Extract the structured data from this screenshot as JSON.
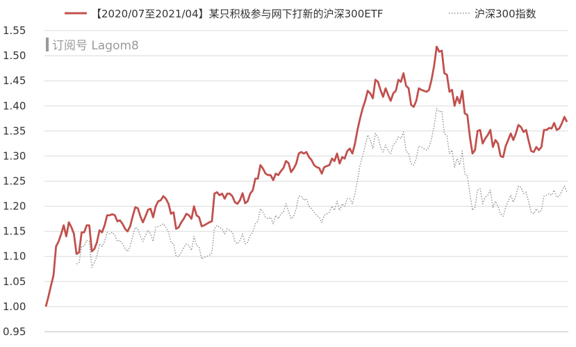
{
  "chart_data": {
    "type": "line",
    "title": "",
    "xlabel": "",
    "ylabel": "",
    "ylim": [
      0.95,
      1.55
    ],
    "yticks": [
      "0.95",
      "1.00",
      "1.05",
      "1.10",
      "1.15",
      "1.20",
      "1.25",
      "1.30",
      "1.35",
      "1.40",
      "1.45",
      "1.50",
      "1.55"
    ],
    "grid": "horizontal",
    "legend_position": "top",
    "watermark": "订阅号 Lagom8",
    "series": [
      {
        "name": "【2020/07至2021/04】某只积极参与网下打新的沪深300ETF",
        "color": "#c0504d",
        "style": "solid",
        "values": [
          1.0,
          1.02,
          1.042,
          1.062,
          1.12,
          1.13,
          1.145,
          1.162,
          1.14,
          1.168,
          1.158,
          1.145,
          1.105,
          1.108,
          1.148,
          1.148,
          1.162,
          1.162,
          1.11,
          1.115,
          1.128,
          1.152,
          1.148,
          1.162,
          1.182,
          1.182,
          1.184,
          1.182,
          1.17,
          1.172,
          1.165,
          1.155,
          1.15,
          1.16,
          1.18,
          1.198,
          1.196,
          1.18,
          1.168,
          1.18,
          1.193,
          1.195,
          1.178,
          1.2,
          1.21,
          1.212,
          1.22,
          1.215,
          1.205,
          1.185,
          1.188,
          1.155,
          1.158,
          1.168,
          1.175,
          1.185,
          1.182,
          1.175,
          1.2,
          1.182,
          1.178,
          1.16,
          1.162,
          1.165,
          1.168,
          1.17,
          1.225,
          1.228,
          1.222,
          1.225,
          1.215,
          1.225,
          1.225,
          1.22,
          1.208,
          1.205,
          1.212,
          1.226,
          1.206,
          1.21,
          1.225,
          1.232,
          1.255,
          1.255,
          1.282,
          1.275,
          1.265,
          1.262,
          1.262,
          1.252,
          1.265,
          1.262,
          1.27,
          1.276,
          1.29,
          1.286,
          1.268,
          1.275,
          1.285,
          1.305,
          1.308,
          1.305,
          1.308,
          1.298,
          1.292,
          1.282,
          1.278,
          1.276,
          1.265,
          1.278,
          1.28,
          1.282,
          1.295,
          1.29,
          1.305,
          1.285,
          1.298,
          1.295,
          1.31,
          1.315,
          1.305,
          1.325,
          1.352,
          1.375,
          1.395,
          1.41,
          1.43,
          1.425,
          1.415,
          1.452,
          1.448,
          1.432,
          1.418,
          1.435,
          1.422,
          1.41,
          1.425,
          1.43,
          1.452,
          1.448,
          1.465,
          1.44,
          1.435,
          1.402,
          1.398,
          1.41,
          1.435,
          1.432,
          1.43,
          1.428,
          1.432,
          1.452,
          1.48,
          1.518,
          1.508,
          1.51,
          1.465,
          1.462,
          1.428,
          1.432,
          1.4,
          1.418,
          1.405,
          1.43,
          1.385,
          1.382,
          1.338,
          1.305,
          1.312,
          1.35,
          1.352,
          1.325,
          1.335,
          1.342,
          1.352,
          1.318,
          1.332,
          1.325,
          1.3,
          1.298,
          1.32,
          1.332,
          1.345,
          1.332,
          1.345,
          1.362,
          1.358,
          1.348,
          1.352,
          1.33,
          1.31,
          1.308,
          1.318,
          1.312,
          1.318,
          1.352,
          1.352,
          1.356,
          1.355,
          1.366,
          1.352,
          1.355,
          1.365,
          1.378,
          1.368
        ]
      },
      {
        "name": "沪深300指数",
        "color": "#8c8c8c",
        "style": "dotted",
        "values": [
          null,
          null,
          null,
          null,
          null,
          null,
          null,
          null,
          null,
          null,
          null,
          null,
          1.085,
          1.088,
          1.12,
          1.12,
          1.132,
          1.13,
          1.078,
          1.088,
          1.1,
          1.125,
          1.12,
          1.13,
          1.148,
          1.145,
          1.148,
          1.142,
          1.13,
          1.132,
          1.125,
          1.115,
          1.11,
          1.12,
          1.14,
          1.158,
          1.155,
          1.14,
          1.13,
          1.142,
          1.152,
          1.145,
          1.13,
          1.158,
          1.16,
          1.162,
          1.165,
          1.158,
          1.148,
          1.128,
          1.125,
          1.1,
          1.1,
          1.108,
          1.118,
          1.125,
          1.122,
          1.112,
          1.14,
          1.122,
          1.118,
          1.095,
          1.098,
          1.1,
          1.102,
          1.108,
          1.155,
          1.162,
          1.158,
          1.155,
          1.145,
          1.155,
          1.152,
          1.148,
          1.13,
          1.125,
          1.132,
          1.145,
          1.125,
          1.128,
          1.142,
          1.148,
          1.165,
          1.17,
          1.195,
          1.188,
          1.178,
          1.175,
          1.178,
          1.165,
          1.182,
          1.175,
          1.185,
          1.188,
          1.205,
          1.19,
          1.175,
          1.18,
          1.195,
          1.22,
          1.22,
          1.212,
          1.215,
          1.2,
          1.195,
          1.188,
          1.182,
          1.178,
          1.168,
          1.182,
          1.185,
          1.188,
          1.2,
          1.192,
          1.21,
          1.192,
          1.205,
          1.2,
          1.215,
          1.215,
          1.205,
          1.225,
          1.252,
          1.282,
          1.3,
          1.32,
          1.342,
          1.332,
          1.315,
          1.345,
          1.338,
          1.318,
          1.308,
          1.322,
          1.31,
          1.305,
          1.322,
          1.328,
          1.338,
          1.335,
          1.348,
          1.31,
          1.305,
          1.285,
          1.282,
          1.295,
          1.32,
          1.318,
          1.315,
          1.312,
          1.318,
          1.335,
          1.36,
          1.395,
          1.388,
          1.39,
          1.345,
          1.34,
          1.305,
          1.312,
          1.278,
          1.295,
          1.282,
          1.31,
          1.265,
          1.26,
          1.225,
          1.192,
          1.198,
          1.232,
          1.235,
          1.205,
          1.218,
          1.222,
          1.232,
          1.198,
          1.21,
          1.2,
          1.185,
          1.18,
          1.198,
          1.21,
          1.222,
          1.208,
          1.222,
          1.24,
          1.238,
          1.225,
          1.228,
          1.208,
          1.188,
          1.185,
          1.195,
          1.188,
          1.192,
          1.22,
          1.222,
          1.225,
          1.222,
          1.232,
          1.218,
          1.22,
          1.23,
          1.24,
          1.228
        ]
      }
    ]
  }
}
